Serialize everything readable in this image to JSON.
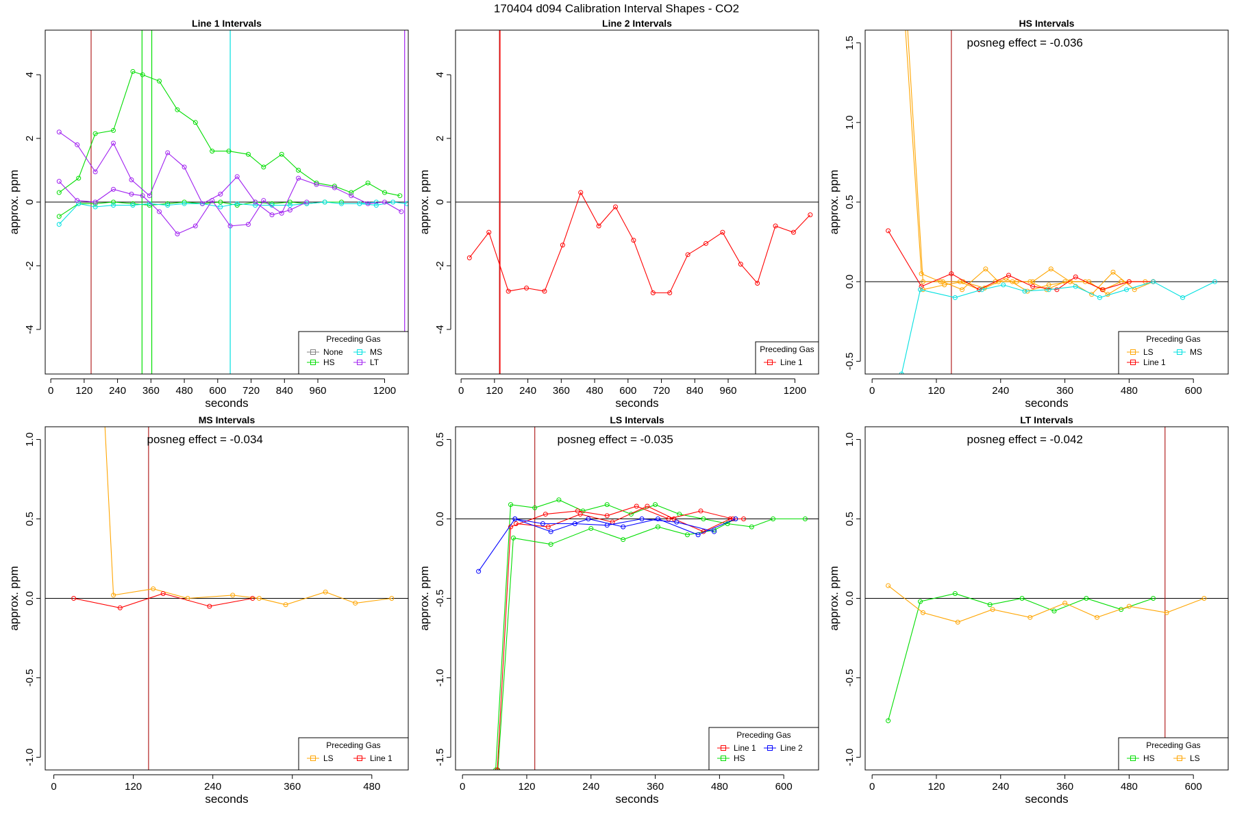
{
  "figure_title": "170404  d094   Calibration Interval Shapes - CO2",
  "chart_data": [
    {
      "type": "line",
      "title": "Line 1 Intervals",
      "xlabel": "seconds",
      "ylabel": "approx. ppm",
      "xlim": [
        -20,
        1285
      ],
      "ylim": [
        -5.4,
        5.4
      ],
      "xticks": [
        0,
        120,
        240,
        360,
        480,
        600,
        720,
        840,
        960,
        1200
      ],
      "yticks": [
        -4,
        -2,
        0,
        2,
        4
      ],
      "vlines": [
        {
          "x": 145,
          "color": "#b22222"
        },
        {
          "x": 328,
          "color": "#00e000"
        },
        {
          "x": 363,
          "color": "#00e000"
        },
        {
          "x": 645,
          "color": "#00e0e0"
        },
        {
          "x": 1272,
          "color": "#a020f0"
        }
      ],
      "legend": {
        "title": "Preceding Gas",
        "position": "bottom-right",
        "columns": 2,
        "entries": [
          "None",
          "MS",
          "HS",
          "LT"
        ]
      },
      "series": [
        {
          "name": "None",
          "color": "#808080",
          "x": [],
          "y": []
        },
        {
          "name": "HS",
          "color": "#00dd00",
          "x": [
            30,
            100,
            160,
            225,
            295,
            330,
            390,
            455,
            520,
            580,
            640,
            710,
            765,
            830,
            890,
            955,
            1020,
            1080,
            1140,
            1200,
            1255
          ],
          "y": [
            0.3,
            0.75,
            2.15,
            2.25,
            4.1,
            4.0,
            3.8,
            2.9,
            2.5,
            1.6,
            1.6,
            1.5,
            1.1,
            1.5,
            1.0,
            0.6,
            0.5,
            0.3,
            0.6,
            0.3,
            0.2
          ]
        },
        {
          "name": "HS",
          "color": "#00dd00",
          "x": [
            30,
            100,
            160,
            225,
            295,
            355,
            420,
            480,
            545,
            610,
            670,
            735,
            795,
            860,
            920,
            985,
            1045
          ],
          "y": [
            -0.45,
            -0.05,
            -0.05,
            0.0,
            -0.05,
            -0.1,
            -0.05,
            0.0,
            -0.05,
            0.0,
            -0.1,
            0.0,
            -0.05,
            0.0,
            -0.05,
            0.0,
            0.0
          ]
        },
        {
          "name": "MS",
          "color": "#00e0e0",
          "x": [
            30,
            100,
            160,
            225,
            295,
            355,
            420,
            480,
            545,
            610,
            670,
            735,
            795,
            860,
            920,
            985,
            1045,
            1110,
            1170
          ],
          "y": [
            -0.7,
            -0.05,
            -0.15,
            -0.1,
            -0.1,
            -0.05,
            -0.1,
            -0.05,
            -0.05,
            -0.15,
            -0.05,
            -0.1,
            -0.1,
            -0.1,
            -0.05,
            0.0,
            -0.05,
            -0.05,
            0.0
          ]
        },
        {
          "name": "MS",
          "color": "#00e0e0",
          "x": [
            1110,
            1170,
            1230,
            1280
          ],
          "y": [
            -0.05,
            -0.1,
            0.0,
            -0.05
          ]
        },
        {
          "name": "LT",
          "color": "#a020f0",
          "x": [
            30,
            95,
            160,
            225,
            290,
            355,
            420,
            480,
            545,
            610,
            670,
            735,
            795,
            860,
            920
          ],
          "y": [
            2.2,
            1.8,
            0.95,
            1.85,
            0.7,
            0.2,
            1.55,
            1.1,
            -0.05,
            0.25,
            0.8,
            0.0,
            -0.4,
            -0.25,
            0.0
          ]
        },
        {
          "name": "LT",
          "color": "#a020f0",
          "x": [
            30,
            95,
            160,
            225,
            290,
            330,
            390,
            455,
            520,
            580,
            645,
            710,
            765,
            830,
            890,
            955,
            1020,
            1080,
            1140,
            1200,
            1260
          ],
          "y": [
            0.65,
            0.05,
            0.0,
            0.4,
            0.25,
            0.2,
            -0.3,
            -1.0,
            -0.75,
            0.05,
            -0.75,
            -0.7,
            0.05,
            -0.35,
            0.75,
            0.55,
            0.45,
            0.2,
            -0.05,
            0.0,
            -0.3
          ]
        }
      ]
    },
    {
      "type": "line",
      "title": "Line 2 Intervals",
      "xlabel": "seconds",
      "ylabel": "approx. ppm",
      "xlim": [
        -20,
        1285
      ],
      "ylim": [
        -5.4,
        5.4
      ],
      "xticks": [
        0,
        120,
        240,
        360,
        480,
        600,
        720,
        840,
        960,
        1200
      ],
      "yticks": [
        -4,
        -2,
        0,
        2,
        4
      ],
      "vlines": [
        {
          "x": 138,
          "color": "#b22222"
        },
        {
          "x": 140,
          "color": "#ff0000"
        }
      ],
      "legend": {
        "title": "Preceding Gas",
        "position": "bottom-right",
        "columns": 1,
        "entries": [
          "Line 1"
        ]
      },
      "series": [
        {
          "name": "Line 1",
          "color": "#ff0000",
          "x": [
            30,
            100,
            170,
            235,
            300,
            365,
            430,
            495,
            555,
            620,
            690,
            750,
            815,
            880,
            940,
            1005,
            1065,
            1130,
            1195,
            1255
          ],
          "y": [
            -1.75,
            -0.95,
            -2.8,
            -2.7,
            -2.8,
            -1.35,
            0.3,
            -0.75,
            -0.15,
            -1.2,
            -2.85,
            -2.85,
            -1.65,
            -1.3,
            -0.95,
            -1.95,
            -2.55,
            -0.75,
            -0.95,
            -0.4
          ]
        }
      ]
    },
    {
      "type": "line",
      "title": "HS Intervals",
      "xlabel": "seconds",
      "ylabel": "approx. ppm",
      "xlim": [
        -13,
        665
      ],
      "ylim": [
        -0.58,
        1.58
      ],
      "xticks": [
        0,
        120,
        240,
        360,
        480,
        600
      ],
      "yticks": [
        -0.5,
        0.0,
        0.5,
        1.0,
        1.5
      ],
      "vlines": [
        {
          "x": 148,
          "color": "#b22222"
        }
      ],
      "annotation": "posneg effect = -0.036",
      "legend": {
        "title": "Preceding Gas",
        "position": "bottom-right",
        "columns": 2,
        "entries": [
          "LS",
          "MS",
          "Line 1"
        ]
      },
      "series": [
        {
          "name": "LS",
          "color": "#ffa500",
          "x": [
            62,
            92,
            128,
            164,
            200,
            230,
            262,
            295,
            326,
            360,
            398,
            432,
            465,
            510
          ],
          "y": [
            1.6,
            0.05,
            0.0,
            0.0,
            -0.05,
            0.0,
            0.0,
            0.0,
            -0.05,
            0.0,
            0.0,
            -0.05,
            0.0,
            0.0
          ]
        },
        {
          "name": "LS",
          "color": "#ffa500",
          "x": [
            66,
            95,
            132,
            168,
            212,
            236,
            270,
            300,
            334,
            370,
            405,
            440,
            480,
            525
          ],
          "y": [
            1.6,
            0.0,
            0.0,
            -0.05,
            0.08,
            0.0,
            0.0,
            0.0,
            0.08,
            0.0,
            0.0,
            -0.08,
            0.0,
            0.0
          ]
        },
        {
          "name": "LS",
          "color": "#ffa500",
          "x": [
            95,
            135,
            170,
            210,
            250,
            290,
            330,
            370,
            410,
            450,
            490,
            525
          ],
          "y": [
            -0.05,
            -0.02,
            0.0,
            -0.04,
            0.02,
            -0.06,
            -0.02,
            0.0,
            -0.08,
            0.06,
            -0.05,
            0.0
          ]
        },
        {
          "name": "Line 1",
          "color": "#ff0000",
          "x": [
            30,
            92,
            148,
            200,
            255,
            300,
            345,
            380,
            430,
            480,
            525
          ],
          "y": [
            0.32,
            -0.03,
            0.05,
            -0.05,
            0.04,
            -0.03,
            -0.05,
            0.03,
            -0.05,
            0.0,
            0.0
          ]
        },
        {
          "name": "MS",
          "color": "#00e0e0",
          "x": [
            55,
            90,
            155,
            205,
            245,
            285,
            330,
            380,
            425,
            475,
            525,
            580,
            640
          ],
          "y": [
            -0.58,
            -0.05,
            -0.1,
            -0.05,
            -0.02,
            -0.06,
            -0.05,
            -0.03,
            -0.1,
            -0.05,
            0.0,
            -0.1,
            0.0
          ]
        }
      ]
    },
    {
      "type": "line",
      "title": "MS Intervals",
      "xlabel": "seconds",
      "ylabel": "approx. ppm",
      "xlim": [
        -13,
        535
      ],
      "ylim": [
        -1.08,
        1.08
      ],
      "xticks": [
        0,
        120,
        240,
        360,
        480
      ],
      "yticks": [
        -1.0,
        -0.5,
        0.0,
        0.5,
        1.0
      ],
      "vlines": [
        {
          "x": 143,
          "color": "#b22222"
        }
      ],
      "annotation": "posneg effect = -0.034",
      "legend": {
        "title": "Preceding Gas",
        "position": "bottom-right",
        "columns": 2,
        "entries": [
          "LS",
          "Line 1"
        ]
      },
      "series": [
        {
          "name": "LS",
          "color": "#ffa500",
          "x": [
            77,
            90,
            150,
            202,
            270,
            310,
            350,
            410,
            455,
            510
          ],
          "y": [
            1.1,
            0.02,
            0.06,
            0.0,
            0.02,
            0.0,
            -0.04,
            0.04,
            -0.03,
            0.0
          ]
        },
        {
          "name": "Line 1",
          "color": "#ff0000",
          "x": [
            30,
            100,
            165,
            235,
            300
          ],
          "y": [
            0.0,
            -0.06,
            0.03,
            -0.05,
            0.0
          ]
        }
      ]
    },
    {
      "type": "line",
      "title": "LS Intervals",
      "xlabel": "seconds",
      "ylabel": "approx. ppm",
      "xlim": [
        -13,
        665
      ],
      "ylim": [
        -1.58,
        0.58
      ],
      "xticks": [
        0,
        120,
        240,
        360,
        480,
        600
      ],
      "yticks": [
        -1.5,
        -1.0,
        -0.5,
        0.0,
        0.5
      ],
      "vlines": [
        {
          "x": 135,
          "color": "#b22222"
        }
      ],
      "annotation": "posneg effect = -0.035",
      "legend": {
        "title": "Preceding Gas",
        "position": "bottom-right",
        "columns": 2,
        "entries": [
          "Line 1",
          "Line 2",
          "HS"
        ]
      },
      "series": [
        {
          "name": "HS",
          "color": "#00dd00",
          "x": [
            62,
            90,
            135,
            180,
            225,
            270,
            315,
            360,
            405,
            450,
            495,
            540,
            580,
            640
          ],
          "y": [
            -1.58,
            0.09,
            0.07,
            0.12,
            0.05,
            0.09,
            0.03,
            0.09,
            0.03,
            0.0,
            -0.03,
            -0.05,
            0.0,
            0.0
          ]
        },
        {
          "name": "HS",
          "color": "#00dd00",
          "x": [
            66,
            95,
            165,
            240,
            300,
            365,
            420,
            470,
            510
          ],
          "y": [
            -1.58,
            -0.12,
            -0.16,
            -0.06,
            -0.13,
            -0.05,
            -0.1,
            -0.07,
            0.0
          ]
        },
        {
          "name": "Line 1",
          "color": "#ff0000",
          "x": [
            65,
            90,
            155,
            215,
            270,
            325,
            385,
            445,
            505
          ],
          "y": [
            -1.58,
            -0.05,
            0.03,
            0.05,
            0.02,
            0.08,
            0.0,
            0.05,
            0.0
          ]
        },
        {
          "name": "Line 1",
          "color": "#ff0000",
          "x": [
            100,
            160,
            220,
            280,
            345,
            395,
            450,
            500,
            525
          ],
          "y": [
            -0.03,
            -0.05,
            0.03,
            -0.02,
            0.08,
            0.0,
            -0.08,
            0.0,
            0.0
          ]
        },
        {
          "name": "Line 2",
          "color": "#0000ff",
          "x": [
            30,
            98,
            165,
            235,
            300,
            365,
            440,
            510
          ],
          "y": [
            -0.33,
            0.0,
            -0.08,
            0.0,
            -0.05,
            0.0,
            -0.1,
            0.0
          ]
        },
        {
          "name": "Line 2",
          "color": "#0000ff",
          "x": [
            98,
            150,
            210,
            270,
            335,
            400,
            470
          ],
          "y": [
            0.0,
            -0.03,
            -0.03,
            -0.04,
            0.0,
            -0.02,
            -0.08
          ]
        }
      ]
    },
    {
      "type": "line",
      "title": "LT Intervals",
      "xlabel": "seconds",
      "ylabel": "approx. ppm",
      "xlim": [
        -13,
        665
      ],
      "ylim": [
        -1.08,
        1.08
      ],
      "xticks": [
        0,
        120,
        240,
        360,
        480,
        600
      ],
      "yticks": [
        -1.0,
        -0.5,
        0.0,
        0.5,
        1.0
      ],
      "vlines": [
        {
          "x": 547,
          "color": "#b22222"
        }
      ],
      "annotation": "posneg effect = -0.042",
      "legend": {
        "title": "Preceding Gas",
        "position": "bottom-right",
        "columns": 2,
        "entries": [
          "HS",
          "LS"
        ]
      },
      "series": [
        {
          "name": "HS",
          "color": "#00dd00",
          "x": [
            30,
            90,
            155,
            220,
            280,
            340,
            400,
            465,
            525
          ],
          "y": [
            -0.77,
            -0.02,
            0.03,
            -0.04,
            0.0,
            -0.08,
            0.0,
            -0.07,
            0.0
          ]
        },
        {
          "name": "LS",
          "color": "#ffa500",
          "x": [
            30,
            95,
            160,
            225,
            295,
            360,
            420,
            480,
            550,
            620
          ],
          "y": [
            0.08,
            -0.09,
            -0.15,
            -0.07,
            -0.12,
            -0.03,
            -0.12,
            -0.05,
            -0.09,
            0.0
          ]
        }
      ]
    }
  ]
}
